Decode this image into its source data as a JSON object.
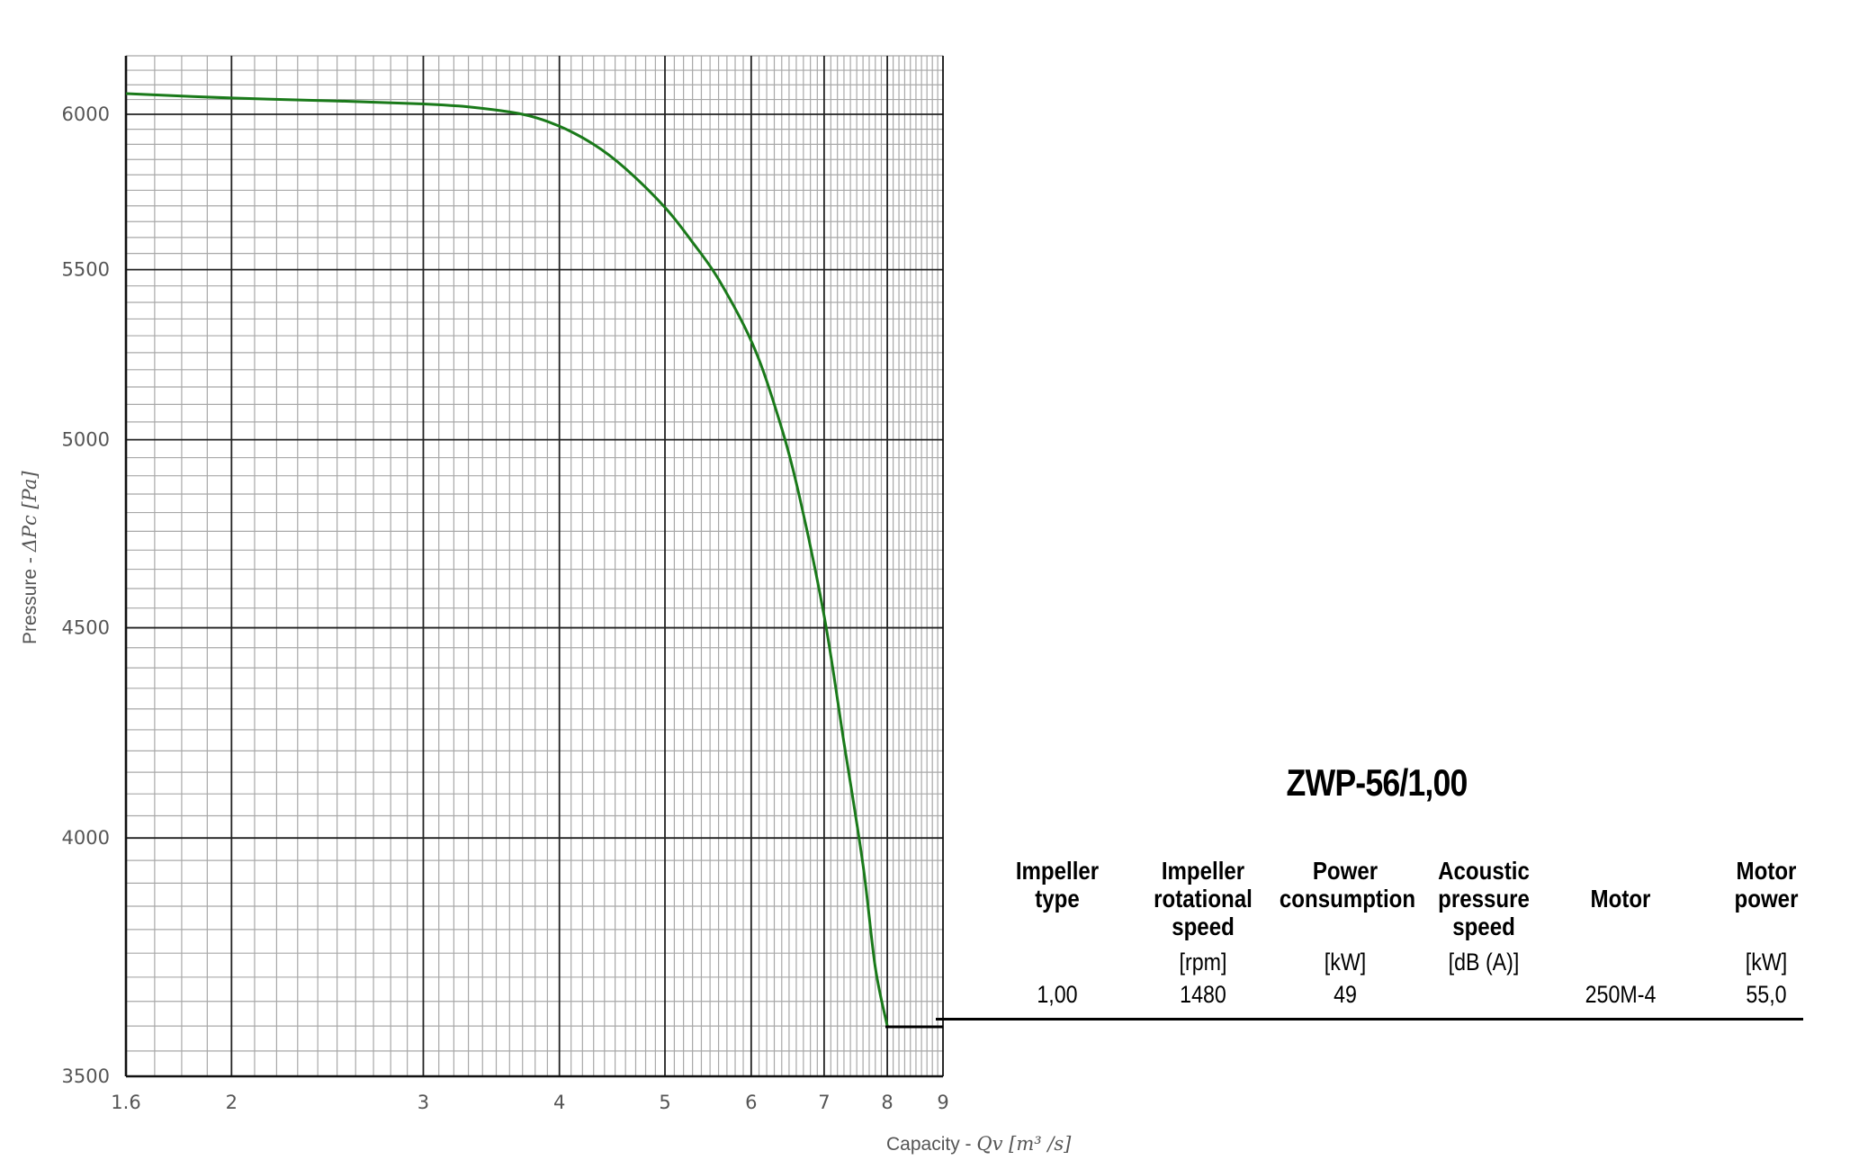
{
  "chart_data": {
    "type": "line",
    "x_scale": "log",
    "y_scale": "log",
    "xlim": [
      1.6,
      9
    ],
    "ylim": [
      3500,
      6200
    ],
    "x_ticks": [
      "1.6",
      "2",
      "3",
      "4",
      "5",
      "6",
      "7",
      "8",
      "9"
    ],
    "y_ticks": [
      "3500",
      "4000",
      "4500",
      "5000",
      "5500",
      "6000"
    ],
    "xlabel_text": "Capacity - ",
    "xlabel_math": "Qv [m³ /s]",
    "ylabel_text": "Pressure - ",
    "ylabel_math": "ΔPc [Pa]",
    "grid": true,
    "series": [
      {
        "color": "#1a7a1a",
        "x": [
          1.6,
          2.0,
          2.5,
          3.0,
          3.3,
          3.7,
          4.0,
          4.3,
          4.6,
          5.0,
          5.3,
          5.6,
          6.0,
          6.3,
          6.6,
          7.0,
          7.3,
          7.6,
          7.8,
          8.0
        ],
        "y": [
          6070,
          6055,
          6045,
          6035,
          6025,
          6000,
          5960,
          5900,
          5820,
          5695,
          5585,
          5470,
          5285,
          5100,
          4880,
          4530,
          4220,
          3940,
          3720,
          3600
        ]
      }
    ]
  },
  "product": {
    "title": "ZWP-56/1,00",
    "columns": [
      {
        "header": [
          "Impeller",
          "type"
        ],
        "unit": "",
        "value": "1,00"
      },
      {
        "header": [
          "Impeller",
          "rotational",
          "speed"
        ],
        "unit": "[rpm]",
        "value": "1480"
      },
      {
        "header": [
          "Power",
          "consumption"
        ],
        "unit": "[kW]",
        "value": "49"
      },
      {
        "header": [
          "Acoustic",
          "pressure",
          "speed"
        ],
        "unit": "[dB (A)]",
        "value": ""
      },
      {
        "header": [
          "Motor"
        ],
        "unit": "",
        "value": "250M-4"
      },
      {
        "header": [
          "Motor",
          "power"
        ],
        "unit": "[kW]",
        "value": "55,0"
      }
    ]
  }
}
